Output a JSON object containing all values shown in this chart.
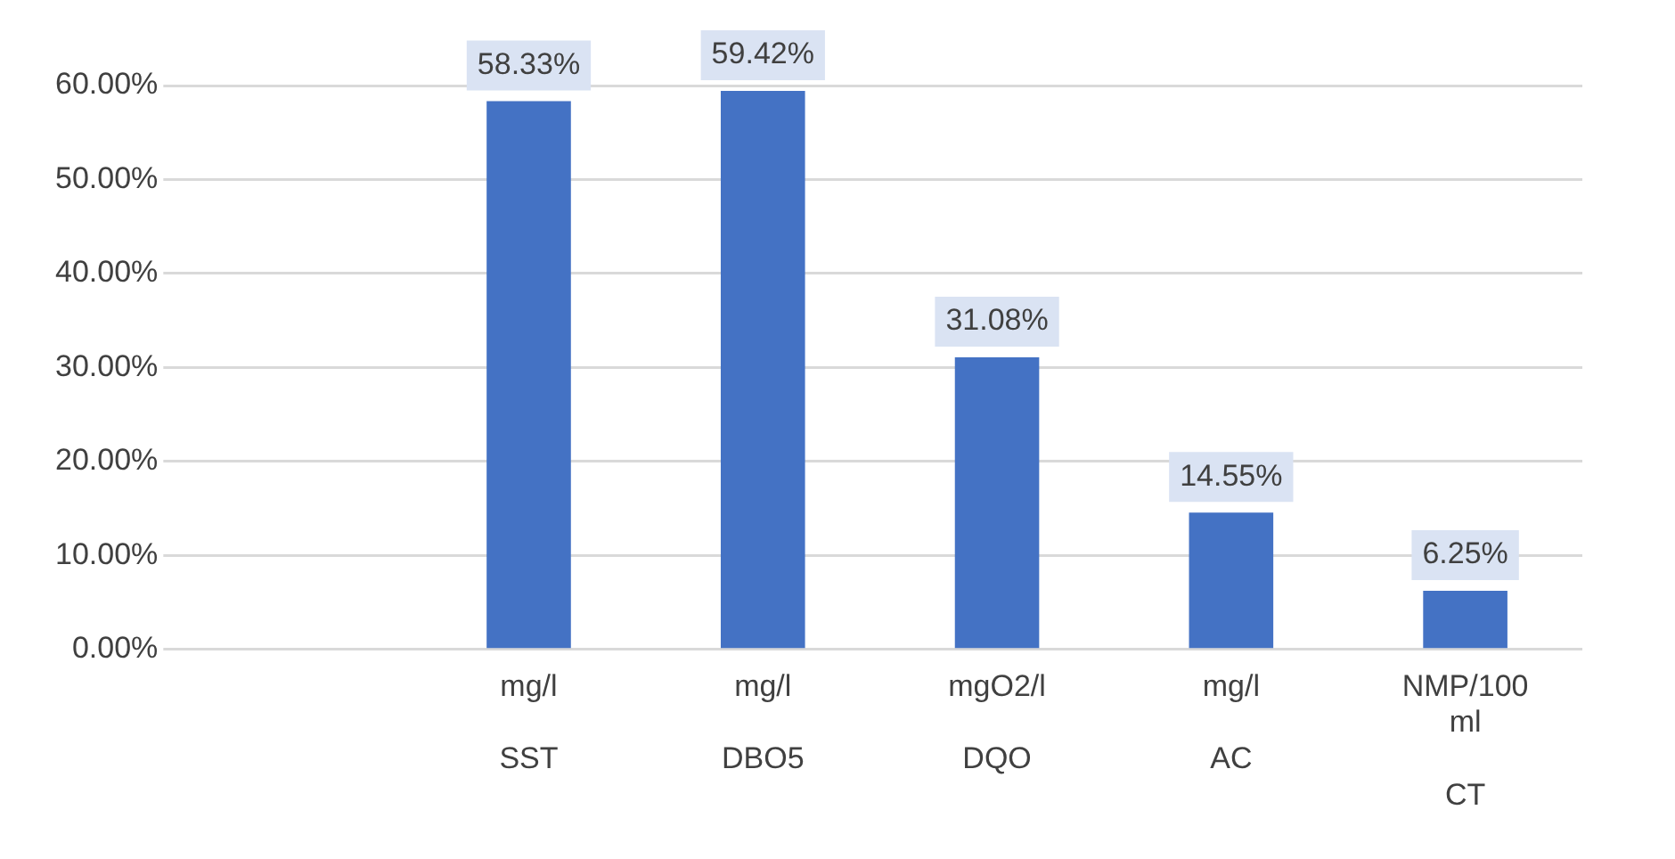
{
  "chart_data": {
    "type": "bar",
    "categories": [
      null,
      "mg/l\nSST",
      "mg/l\nDBO5",
      "mgO2/l\nDQO",
      "mg/l\nAC",
      "NMP/100\nml\nCT"
    ],
    "values": [
      null,
      58.33,
      59.42,
      31.08,
      14.55,
      6.25
    ],
    "value_labels": [
      null,
      "58.33%",
      "59.42%",
      "31.08%",
      "14.55%",
      "6.25%"
    ],
    "color": "#4472c4",
    "ylim": [
      0,
      60
    ],
    "yticks": [
      {
        "value": 0,
        "label": "0.00%"
      },
      {
        "value": 10,
        "label": "10.00%"
      },
      {
        "value": 20,
        "label": "20.00%"
      },
      {
        "value": 30,
        "label": "30.00%"
      },
      {
        "value": 40,
        "label": "40.00%"
      },
      {
        "value": 50,
        "label": "50.00%"
      },
      {
        "value": 60,
        "label": "60.00%"
      }
    ],
    "grid": "y"
  }
}
